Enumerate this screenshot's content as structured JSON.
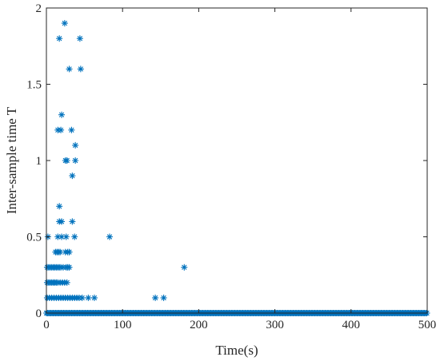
{
  "chart_data": {
    "type": "scatter",
    "title": "",
    "xlabel": "Time(s)",
    "ylabel": "Inter-sample time T",
    "xlim": [
      0,
      500
    ],
    "ylim": [
      0,
      2
    ],
    "xticks": [
      "0",
      "100",
      "200",
      "300",
      "400",
      "500"
    ],
    "yticks": [
      "0",
      "0.5",
      "1",
      "1.5",
      "2"
    ],
    "grid": false,
    "marker": "asterisk",
    "color": "#0072BD",
    "series": [
      {
        "points": [
          [
            24,
            1.9
          ],
          [
            17,
            1.8
          ],
          [
            44,
            1.8
          ],
          [
            30,
            1.6
          ],
          [
            45,
            1.6
          ],
          [
            20,
            1.3
          ],
          [
            15,
            1.2
          ],
          [
            19,
            1.2
          ],
          [
            33,
            1.2
          ],
          [
            38,
            1.1
          ],
          [
            25,
            1.0
          ],
          [
            27,
            1.0
          ],
          [
            38,
            1.0
          ],
          [
            34,
            0.9
          ],
          [
            17,
            0.7
          ],
          [
            17,
            0.6
          ],
          [
            20,
            0.6
          ],
          [
            34,
            0.6
          ],
          [
            2,
            0.5
          ],
          [
            15,
            0.5
          ],
          [
            20,
            0.5
          ],
          [
            26,
            0.5
          ],
          [
            37,
            0.5
          ],
          [
            83,
            0.5
          ],
          [
            12,
            0.4
          ],
          [
            14,
            0.4
          ],
          [
            16,
            0.4
          ],
          [
            18,
            0.4
          ],
          [
            25,
            0.4
          ],
          [
            28,
            0.4
          ],
          [
            30,
            0.4
          ],
          [
            1,
            0.3
          ],
          [
            3,
            0.3
          ],
          [
            5,
            0.3
          ],
          [
            7,
            0.3
          ],
          [
            9,
            0.3
          ],
          [
            11,
            0.3
          ],
          [
            13,
            0.3
          ],
          [
            15,
            0.3
          ],
          [
            17,
            0.3
          ],
          [
            19,
            0.3
          ],
          [
            22,
            0.3
          ],
          [
            26,
            0.3
          ],
          [
            28,
            0.3
          ],
          [
            30,
            0.3
          ],
          [
            181,
            0.3
          ],
          [
            1,
            0.2
          ],
          [
            3,
            0.2
          ],
          [
            5,
            0.2
          ],
          [
            7,
            0.2
          ],
          [
            9,
            0.2
          ],
          [
            11,
            0.2
          ],
          [
            13,
            0.2
          ],
          [
            15,
            0.2
          ],
          [
            18,
            0.2
          ],
          [
            21,
            0.2
          ],
          [
            24,
            0.2
          ],
          [
            27,
            0.2
          ],
          [
            1,
            0.1
          ],
          [
            4,
            0.1
          ],
          [
            7,
            0.1
          ],
          [
            10,
            0.1
          ],
          [
            13,
            0.1
          ],
          [
            16,
            0.1
          ],
          [
            19,
            0.1
          ],
          [
            22,
            0.1
          ],
          [
            25,
            0.1
          ],
          [
            28,
            0.1
          ],
          [
            31,
            0.1
          ],
          [
            34,
            0.1
          ],
          [
            37,
            0.1
          ],
          [
            40,
            0.1
          ],
          [
            43,
            0.1
          ],
          [
            47,
            0.1
          ],
          [
            55,
            0.1
          ],
          [
            63,
            0.1
          ],
          [
            143,
            0.1
          ],
          [
            154,
            0.1
          ]
        ],
        "baseline": {
          "y": 0,
          "x_from": 0,
          "x_to": 500,
          "step": 1.5
        }
      }
    ]
  }
}
